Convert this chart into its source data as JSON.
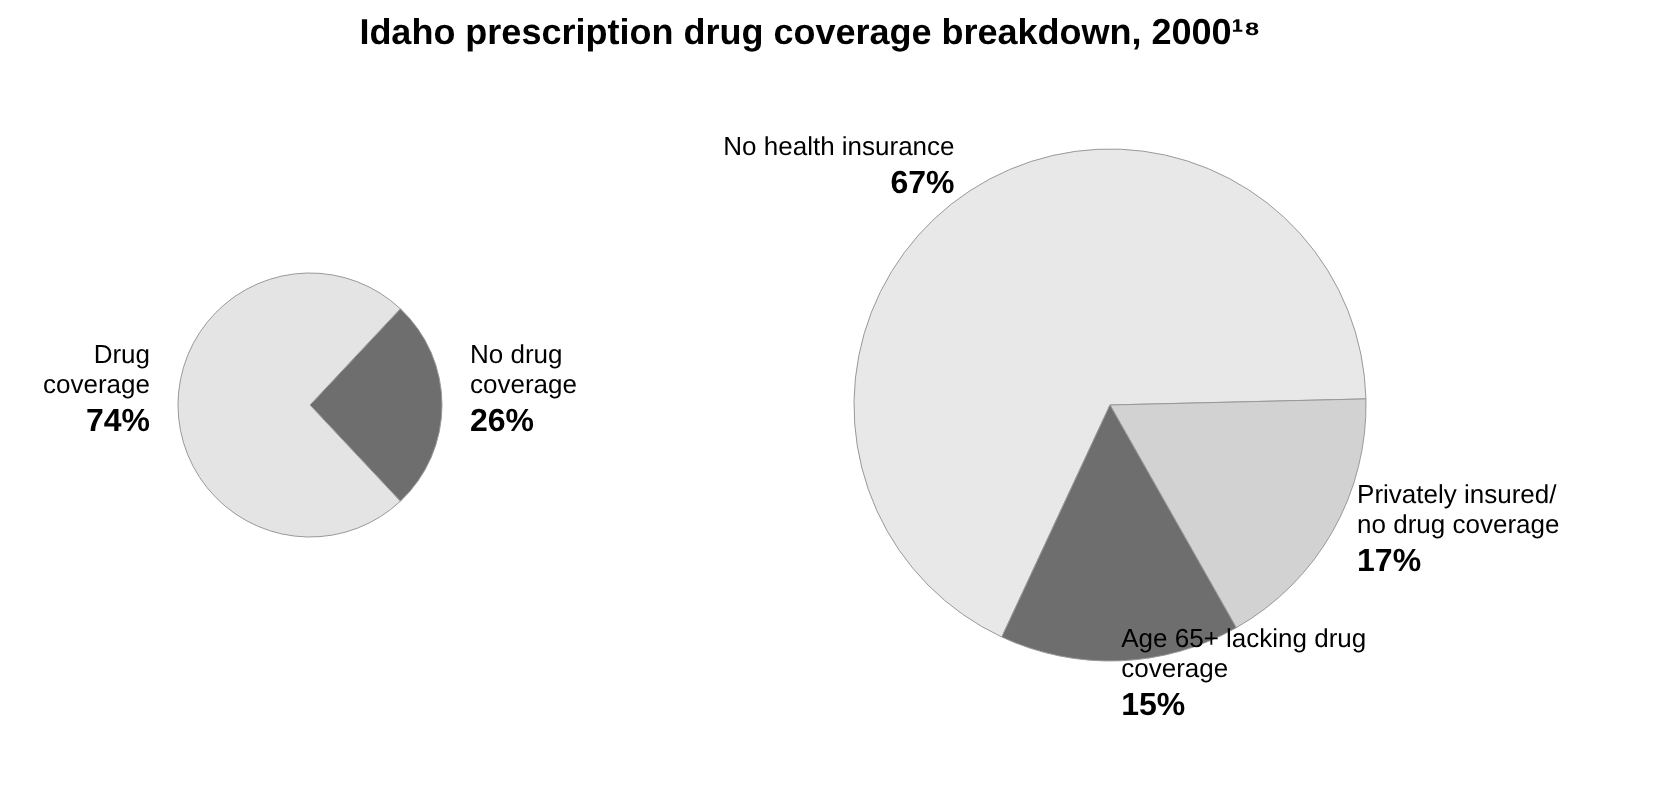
{
  "chart_data": [
    {
      "type": "pie",
      "title": "Idaho prescription drug coverage breakdown, 2000¹⁸",
      "categories": [
        "No drug coverage",
        "Drug coverage"
      ],
      "values": [
        26,
        74
      ],
      "colors": [
        "#6e6e6e",
        "#e4e4e4"
      ],
      "value_labels": [
        "26%",
        "74%"
      ]
    },
    {
      "type": "pie",
      "categories": [
        "No health insurance",
        "Privately insured/ no drug coverage",
        "Age 65+ lacking drug coverage"
      ],
      "values": [
        67,
        17,
        15
      ],
      "colors": [
        "#e8e8e8",
        "#d2d2d2",
        "#6e6e6e"
      ],
      "value_labels": [
        "67%",
        "17%",
        "15%"
      ]
    }
  ]
}
